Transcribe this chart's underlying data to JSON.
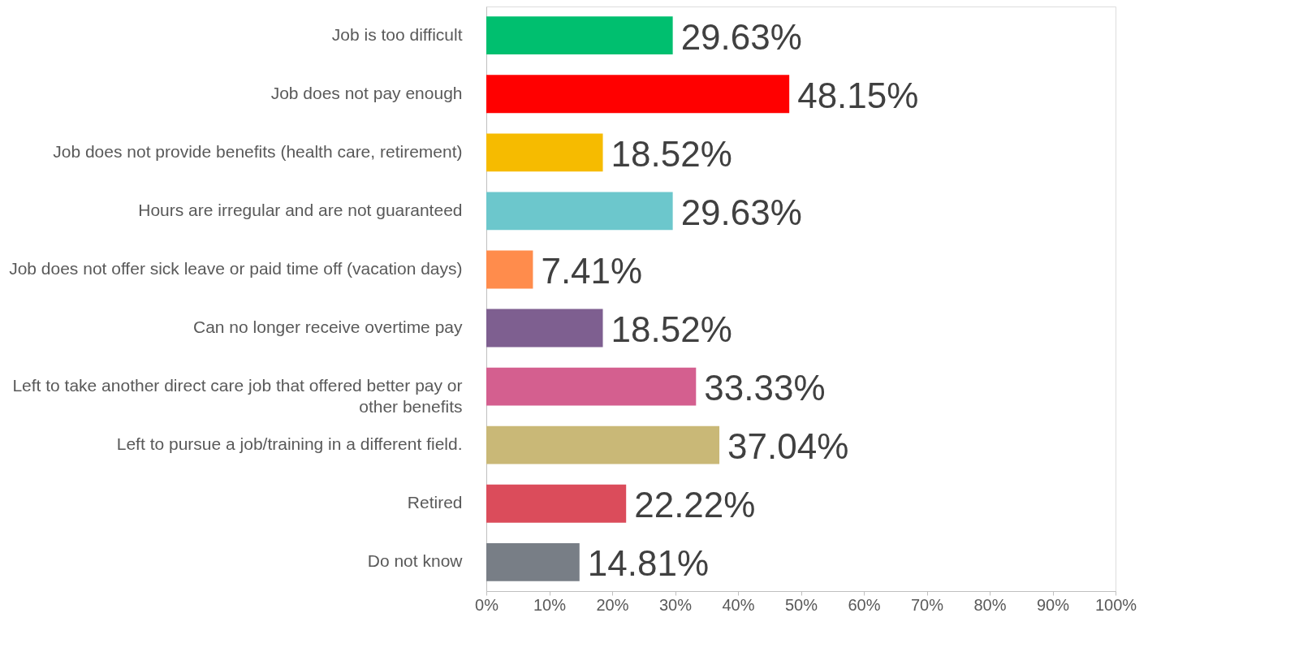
{
  "chart_data": {
    "type": "bar",
    "orientation": "horizontal",
    "categories": [
      "Job is too difficult",
      "Job does not pay enough",
      "Job does not provide benefits (health care, retirement)",
      "Hours are irregular and are not guaranteed",
      "Job does not offer sick leave or paid time off (vacation days)",
      "Can no longer receive overtime pay",
      "Left to take another direct care job that offered better pay or other benefits",
      "Left to pursue a job/training in a different field.",
      "Retired",
      "Do not know"
    ],
    "values": [
      29.63,
      48.15,
      18.52,
      29.63,
      7.41,
      18.52,
      33.33,
      37.04,
      22.22,
      14.81
    ],
    "colors": [
      "#00bf6f",
      "#ff0000",
      "#f6bb00",
      "#6cc7cc",
      "#ff8c4c",
      "#7e5f90",
      "#d45f8f",
      "#c9b877",
      "#db4c5b",
      "#787e86"
    ],
    "value_labels": [
      "29.63%",
      "48.15%",
      "18.52%",
      "29.63%",
      "7.41%",
      "18.52%",
      "33.33%",
      "37.04%",
      "22.22%",
      "14.81%"
    ],
    "xlim": [
      0,
      100
    ],
    "xticks": [
      {
        "value": 0,
        "label": "0%"
      },
      {
        "value": 10,
        "label": "10%"
      },
      {
        "value": 20,
        "label": "20%"
      },
      {
        "value": 30,
        "label": "30%"
      },
      {
        "value": 40,
        "label": "40%"
      },
      {
        "value": 50,
        "label": "50%"
      },
      {
        "value": 60,
        "label": "60%"
      },
      {
        "value": 70,
        "label": "70%"
      },
      {
        "value": 80,
        "label": "80%"
      },
      {
        "value": 90,
        "label": "90%"
      },
      {
        "value": 100,
        "label": "100%"
      }
    ],
    "grid": false
  }
}
